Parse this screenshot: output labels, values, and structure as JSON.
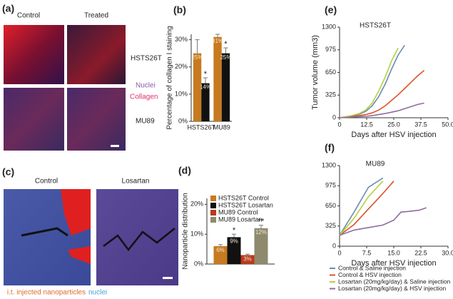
{
  "panels": {
    "a": {
      "label": "(a)",
      "columns": [
        "Control",
        "Treated"
      ],
      "rows": [
        "HSTS26T",
        "MU89"
      ],
      "stains": [
        "Nuclei",
        "Collagen"
      ]
    },
    "c": {
      "label": "(c)",
      "columns": [
        "Control",
        "Losartan"
      ],
      "caption": [
        "i.t. injected nanoparticles",
        "nuclei"
      ]
    }
  },
  "chart_data": [
    {
      "type": "bar",
      "label": "(b)",
      "y_label": "Percentage of collagen I staining",
      "categories": [
        "HSTS26T",
        "MU89"
      ],
      "ylim": [
        0,
        32
      ],
      "yticks": [
        {
          "value": 0,
          "label": "0%"
        },
        {
          "value": 10,
          "label": "10%"
        },
        {
          "value": 20,
          "label": "20%"
        },
        {
          "value": 30,
          "label": "30%"
        }
      ],
      "series": [
        {
          "color": "#c77a1f",
          "values": [
            25,
            31
          ],
          "value_labels": [
            "25%",
            "31%"
          ],
          "errors": [
            5,
            1
          ]
        },
        {
          "color": "#111111",
          "values": [
            14,
            25
          ],
          "value_labels": [
            "14%",
            "25%"
          ],
          "errors": [
            2,
            2
          ],
          "annotations": [
            "*",
            "*"
          ]
        }
      ]
    },
    {
      "type": "bar",
      "label": "(d)",
      "y_label": "Nanoparticle distribution",
      "categories": [
        null
      ],
      "ylim": [
        0,
        22
      ],
      "yticks": [
        {
          "value": 0,
          "label": "0%"
        },
        {
          "value": 10,
          "label": "10%"
        },
        {
          "value": 20,
          "label": "20%"
        }
      ],
      "series": [
        {
          "name": "HSTS26T Control",
          "color": "#c77a1f",
          "values": [
            6
          ],
          "value_labels": [
            "6%"
          ],
          "errors": [
            0.5
          ]
        },
        {
          "name": "HSTS26T Losartan",
          "color": "#111111",
          "values": [
            9
          ],
          "value_labels": [
            "9%"
          ],
          "errors": [
            1
          ],
          "annotations": [
            "*"
          ]
        },
        {
          "name": "MU89 Control",
          "color": "#b83a1c",
          "values": [
            3
          ],
          "value_labels": [
            "3%"
          ],
          "errors": [
            0.3
          ]
        },
        {
          "name": "MU89 Losartan",
          "color": "#8f8a6e",
          "values": [
            12
          ],
          "value_labels": [
            "12%"
          ],
          "errors": [
            1
          ],
          "annotations": [
            "**"
          ]
        }
      ]
    },
    {
      "type": "line",
      "label": "(e)",
      "title": "HSTS26T",
      "x_label": "Days after HSV injection",
      "y_label": "Tumor volume (mm3)",
      "x": [
        0,
        3,
        6,
        9,
        12,
        15,
        18,
        21,
        24,
        27,
        30,
        33,
        36,
        39
      ],
      "xlim": [
        0,
        50
      ],
      "xticks": [
        0,
        12.5,
        {
          "value": 25,
          "label": "25.0"
        },
        37.5,
        {
          "value": 50,
          "label": "50.0"
        }
      ],
      "ylim": [
        0,
        1300
      ],
      "yticks": [
        0,
        325,
        650,
        975,
        1300
      ],
      "series": [
        {
          "color": "#6a8caf",
          "values": [
            0,
            15,
            30,
            50,
            90,
            170,
            300,
            480,
            700,
            900,
            1040,
            null,
            null,
            null
          ]
        },
        {
          "color": "#d9542a",
          "values": [
            0,
            10,
            20,
            30,
            45,
            70,
            110,
            170,
            250,
            330,
            420,
            510,
            600,
            680
          ]
        },
        {
          "color": "#b5d040",
          "values": [
            0,
            15,
            35,
            60,
            110,
            210,
            380,
            580,
            820,
            1000,
            null,
            null,
            null,
            null
          ]
        },
        {
          "color": "#8e6b9e",
          "values": [
            0,
            5,
            10,
            15,
            20,
            30,
            45,
            60,
            80,
            100,
            130,
            160,
            190,
            210
          ]
        }
      ]
    },
    {
      "type": "line",
      "label": "(f)",
      "title": "MU89",
      "x_label": "Days after HSV injection",
      "x": [
        0,
        4,
        8,
        12,
        15,
        17,
        19,
        22,
        24
      ],
      "xlim": [
        0,
        30
      ],
      "xticks": [
        0,
        7.5,
        {
          "value": 15,
          "label": "15.0"
        },
        22.5,
        {
          "value": 30,
          "label": "30.0"
        }
      ],
      "ylim": [
        0,
        1300
      ],
      "yticks": [
        0,
        325,
        650,
        975,
        1300
      ],
      "series": [
        {
          "name": "Control & Saline injection",
          "color": "#6a8caf",
          "values": [
            175,
            550,
            950,
            1100,
            null,
            null,
            null,
            null,
            null
          ]
        },
        {
          "name": "Control & HSV injection",
          "color": "#d9542a",
          "values": [
            175,
            350,
            600,
            850,
            1050,
            null,
            null,
            null,
            null
          ]
        },
        {
          "name": "Losartan (20mg/kg/day) & Saline injection",
          "color": "#b5d040",
          "values": [
            175,
            450,
            800,
            1050,
            null,
            null,
            null,
            null,
            null
          ]
        },
        {
          "name": "Losartan (20mg/kg/day) & HSV injection",
          "color": "#8e6b9e",
          "values": [
            175,
            260,
            300,
            340,
            420,
            550,
            560,
            580,
            620
          ]
        }
      ]
    }
  ]
}
